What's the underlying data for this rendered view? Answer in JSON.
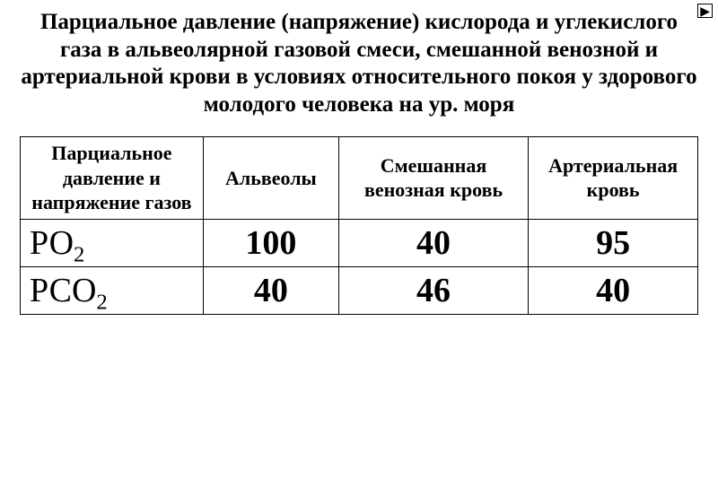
{
  "nav": {
    "right_arrow": "▶"
  },
  "title": "Парциальное давление (напряжение) кислорода и углекислого газа в альвеолярной газовой смеси, смешанной венозной  и артериальной  крови в условиях относительного  покоя  у здорового молодого  человека  на ур. моря",
  "table": {
    "columns": [
      "Парциальное давление и напряжение газов",
      "Альвеолы",
      "Смешанная венозная кровь",
      "Артериальная кровь"
    ],
    "rows": [
      {
        "gas_prefix": "РО",
        "gas_sub": "2",
        "alveoli": "100",
        "venous": "40",
        "arterial": "95"
      },
      {
        "gas_prefix": "РСО",
        "gas_sub": "2",
        "alveoli": "40",
        "venous": "46",
        "arterial": "40"
      }
    ],
    "border_color": "#000000",
    "background_color": "#ffffff",
    "text_color": "#000000",
    "header_fontsize": 22,
    "value_fontsize": 38
  }
}
